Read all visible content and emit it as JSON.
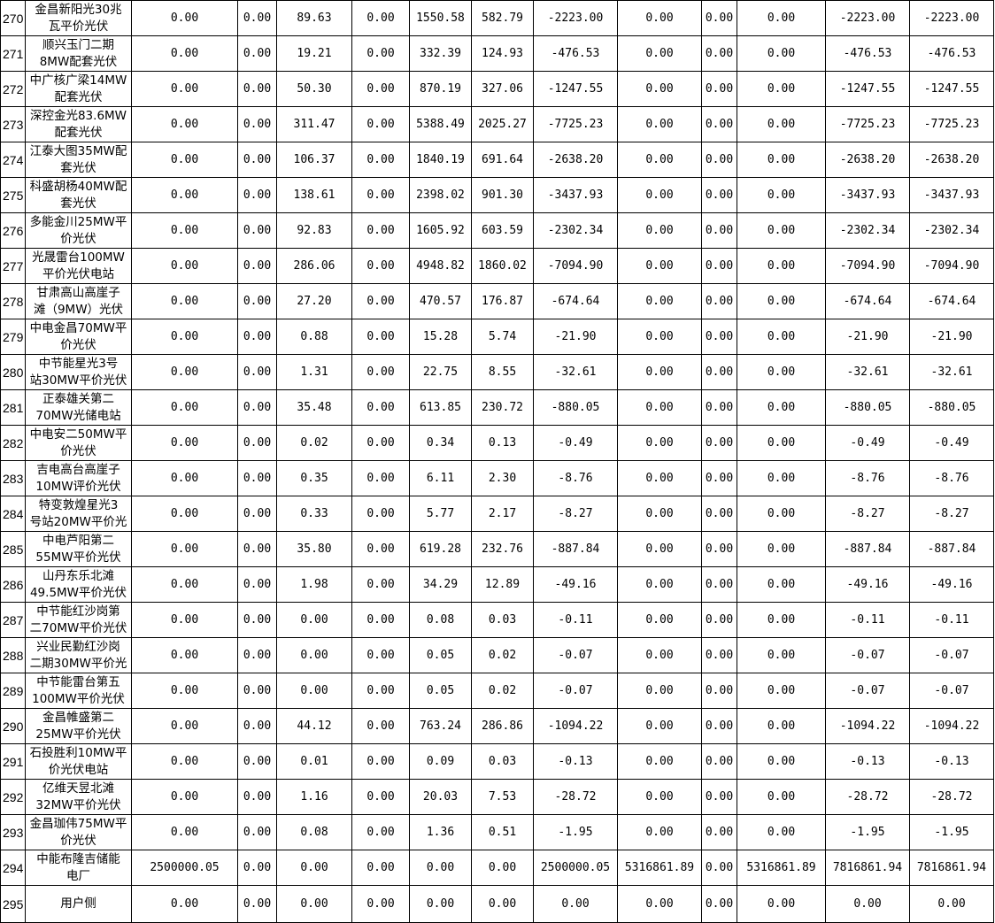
{
  "rows": [
    [
      "270",
      "金昌新阳光30兆\n瓦平价光伏",
      "0.00",
      "0.00",
      "89.63",
      "0.00",
      "1550.58",
      "582.79",
      "-2223.00",
      "0.00",
      "0.00",
      "0.00",
      "-2223.00",
      "-2223.00"
    ],
    [
      "271",
      "顺兴玉门二期\n8MW配套光伏",
      "0.00",
      "0.00",
      "19.21",
      "0.00",
      "332.39",
      "124.93",
      "-476.53",
      "0.00",
      "0.00",
      "0.00",
      "-476.53",
      "-476.53"
    ],
    [
      "272",
      "中广核广梁14MW\n配套光伏",
      "0.00",
      "0.00",
      "50.30",
      "0.00",
      "870.19",
      "327.06",
      "-1247.55",
      "0.00",
      "0.00",
      "0.00",
      "-1247.55",
      "-1247.55"
    ],
    [
      "273",
      "深控金光83.6MW\n配套光伏",
      "0.00",
      "0.00",
      "311.47",
      "0.00",
      "5388.49",
      "2025.27",
      "-7725.23",
      "0.00",
      "0.00",
      "0.00",
      "-7725.23",
      "-7725.23"
    ],
    [
      "274",
      "江泰大图35MW配\n套光伏",
      "0.00",
      "0.00",
      "106.37",
      "0.00",
      "1840.19",
      "691.64",
      "-2638.20",
      "0.00",
      "0.00",
      "0.00",
      "-2638.20",
      "-2638.20"
    ],
    [
      "275",
      "科盛胡杨40MW配\n套光伏",
      "0.00",
      "0.00",
      "138.61",
      "0.00",
      "2398.02",
      "901.30",
      "-3437.93",
      "0.00",
      "0.00",
      "0.00",
      "-3437.93",
      "-3437.93"
    ],
    [
      "276",
      "多能金川25MW平\n价光伏",
      "0.00",
      "0.00",
      "92.83",
      "0.00",
      "1605.92",
      "603.59",
      "-2302.34",
      "0.00",
      "0.00",
      "0.00",
      "-2302.34",
      "-2302.34"
    ],
    [
      "277",
      "光晟雷台100MW\n平价光伏电站",
      "0.00",
      "0.00",
      "286.06",
      "0.00",
      "4948.82",
      "1860.02",
      "-7094.90",
      "0.00",
      "0.00",
      "0.00",
      "-7094.90",
      "-7094.90"
    ],
    [
      "278",
      "甘肃高山高崖子\n滩（9MW）光伏",
      "0.00",
      "0.00",
      "27.20",
      "0.00",
      "470.57",
      "176.87",
      "-674.64",
      "0.00",
      "0.00",
      "0.00",
      "-674.64",
      "-674.64"
    ],
    [
      "279",
      "中电金昌70MW平\n价光伏",
      "0.00",
      "0.00",
      "0.88",
      "0.00",
      "15.28",
      "5.74",
      "-21.90",
      "0.00",
      "0.00",
      "0.00",
      "-21.90",
      "-21.90"
    ],
    [
      "280",
      "中节能星光3号\n站30MW平价光伏",
      "0.00",
      "0.00",
      "1.31",
      "0.00",
      "22.75",
      "8.55",
      "-32.61",
      "0.00",
      "0.00",
      "0.00",
      "-32.61",
      "-32.61"
    ],
    [
      "281",
      "正泰雄关第二\n70MW光储电站",
      "0.00",
      "0.00",
      "35.48",
      "0.00",
      "613.85",
      "230.72",
      "-880.05",
      "0.00",
      "0.00",
      "0.00",
      "-880.05",
      "-880.05"
    ],
    [
      "282",
      "中电安二50MW平\n价光伏",
      "0.00",
      "0.00",
      "0.02",
      "0.00",
      "0.34",
      "0.13",
      "-0.49",
      "0.00",
      "0.00",
      "0.00",
      "-0.49",
      "-0.49"
    ],
    [
      "283",
      "吉电高台高崖子\n10MW评价光伏",
      "0.00",
      "0.00",
      "0.35",
      "0.00",
      "6.11",
      "2.30",
      "-8.76",
      "0.00",
      "0.00",
      "0.00",
      "-8.76",
      "-8.76"
    ],
    [
      "284",
      "特变敦煌星光3\n号站20MW平价光",
      "0.00",
      "0.00",
      "0.33",
      "0.00",
      "5.77",
      "2.17",
      "-8.27",
      "0.00",
      "0.00",
      "0.00",
      "-8.27",
      "-8.27"
    ],
    [
      "285",
      "中电芦阳第二\n55MW平价光伏",
      "0.00",
      "0.00",
      "35.80",
      "0.00",
      "619.28",
      "232.76",
      "-887.84",
      "0.00",
      "0.00",
      "0.00",
      "-887.84",
      "-887.84"
    ],
    [
      "286",
      "山丹东乐北滩\n49.5MW平价光伏",
      "0.00",
      "0.00",
      "1.98",
      "0.00",
      "34.29",
      "12.89",
      "-49.16",
      "0.00",
      "0.00",
      "0.00",
      "-49.16",
      "-49.16"
    ],
    [
      "287",
      "中节能红沙岗第\n二70MW平价光伏",
      "0.00",
      "0.00",
      "0.00",
      "0.00",
      "0.08",
      "0.03",
      "-0.11",
      "0.00",
      "0.00",
      "0.00",
      "-0.11",
      "-0.11"
    ],
    [
      "288",
      "兴业民勤红沙岗\n二期30MW平价光",
      "0.00",
      "0.00",
      "0.00",
      "0.00",
      "0.05",
      "0.02",
      "-0.07",
      "0.00",
      "0.00",
      "0.00",
      "-0.07",
      "-0.07"
    ],
    [
      "289",
      "中节能雷台第五\n100MW平价光伏",
      "0.00",
      "0.00",
      "0.00",
      "0.00",
      "0.05",
      "0.02",
      "-0.07",
      "0.00",
      "0.00",
      "0.00",
      "-0.07",
      "-0.07"
    ],
    [
      "290",
      "金昌帷盛第二\n25MW平价光伏",
      "0.00",
      "0.00",
      "44.12",
      "0.00",
      "763.24",
      "286.86",
      "-1094.22",
      "0.00",
      "0.00",
      "0.00",
      "-1094.22",
      "-1094.22"
    ],
    [
      "291",
      "石投胜利10MW平\n价光伏电站",
      "0.00",
      "0.00",
      "0.01",
      "0.00",
      "0.09",
      "0.03",
      "-0.13",
      "0.00",
      "0.00",
      "0.00",
      "-0.13",
      "-0.13"
    ],
    [
      "292",
      "亿维天昱北滩\n32MW平价光伏",
      "0.00",
      "0.00",
      "1.16",
      "0.00",
      "20.03",
      "7.53",
      "-28.72",
      "0.00",
      "0.00",
      "0.00",
      "-28.72",
      "-28.72"
    ],
    [
      "293",
      "金昌珈伟75MW平\n价光伏",
      "0.00",
      "0.00",
      "0.08",
      "0.00",
      "1.36",
      "0.51",
      "-1.95",
      "0.00",
      "0.00",
      "0.00",
      "-1.95",
      "-1.95"
    ],
    [
      "294",
      "中能布隆吉储能\n电厂",
      "2500000.05",
      "0.00",
      "0.00",
      "0.00",
      "0.00",
      "0.00",
      "2500000.05",
      "5316861.89",
      "0.00",
      "5316861.89",
      "7816861.94",
      "7816861.94"
    ],
    [
      "295",
      "用户侧",
      "0.00",
      "0.00",
      "0.00",
      "0.00",
      "0.00",
      "0.00",
      "0.00",
      "0.00",
      "0.00",
      "0.00",
      "0.00",
      "0.00"
    ]
  ]
}
